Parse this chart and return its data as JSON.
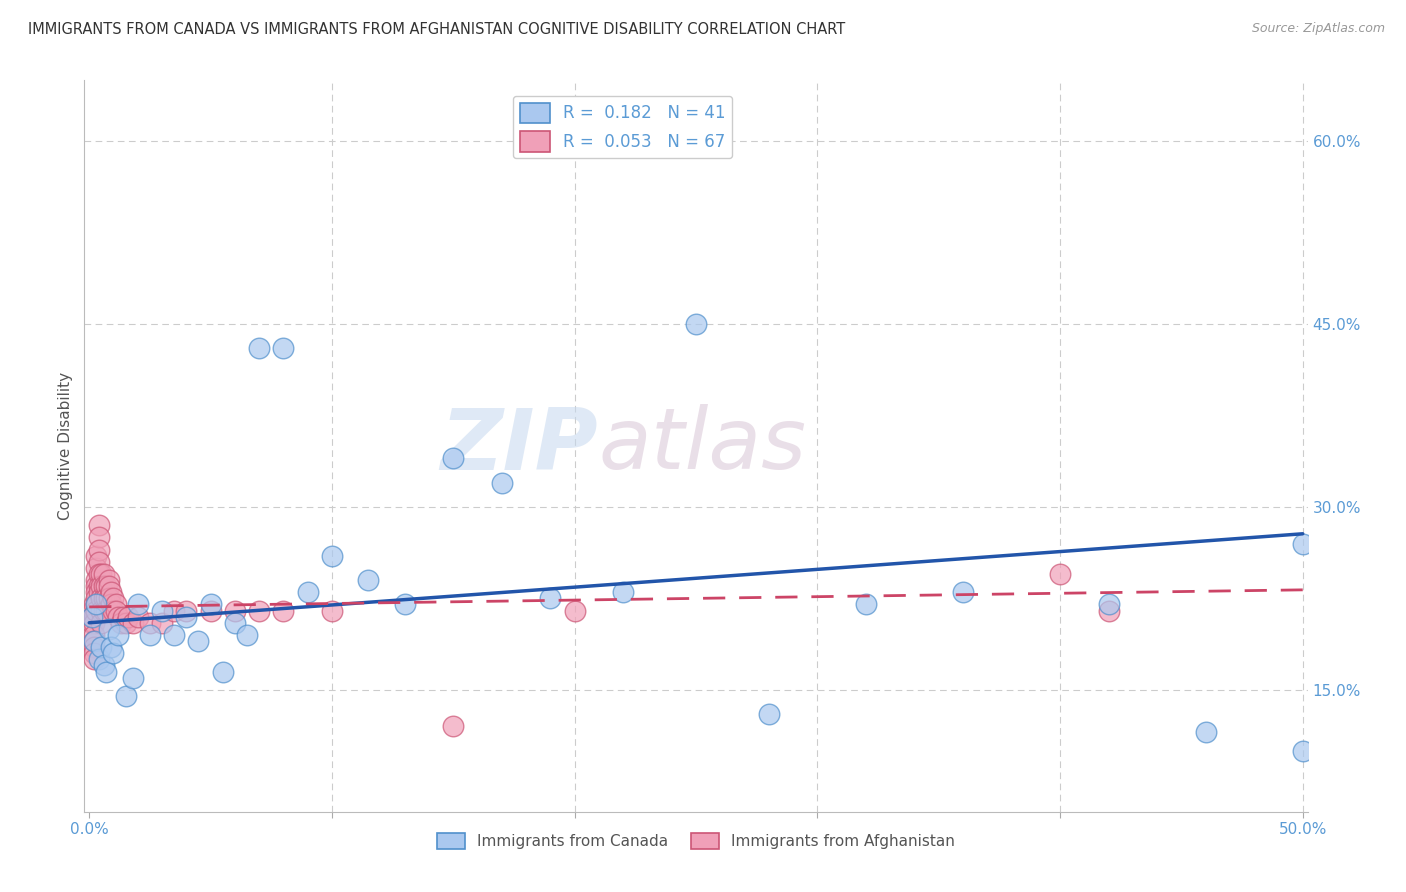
{
  "title": "IMMIGRANTS FROM CANADA VS IMMIGRANTS FROM AFGHANISTAN COGNITIVE DISABILITY CORRELATION CHART",
  "source": "Source: ZipAtlas.com",
  "ylabel": "Cognitive Disability",
  "xlim": [
    -0.002,
    0.502
  ],
  "ylim": [
    0.05,
    0.65
  ],
  "xtick_vals": [
    0.0,
    0.1,
    0.2,
    0.3,
    0.4,
    0.5
  ],
  "xtick_labels": [
    "0.0%",
    "",
    "",
    "",
    "",
    "50.0%"
  ],
  "ytick_vals": [
    0.15,
    0.3,
    0.45,
    0.6
  ],
  "ytick_labels": [
    "15.0%",
    "30.0%",
    "45.0%",
    "60.0%"
  ],
  "canada_color": "#aac8ef",
  "canada_edge": "#5090cc",
  "canada_line_color": "#2255aa",
  "canada_line_x": [
    0.0,
    0.5
  ],
  "canada_line_y": [
    0.205,
    0.278
  ],
  "afghanistan_color": "#f0a0b8",
  "afghanistan_edge": "#cc5575",
  "afghanistan_line_color": "#cc4466",
  "afghanistan_line_x": [
    0.0,
    0.5
  ],
  "afghanistan_line_y": [
    0.218,
    0.232
  ],
  "legend_R1": "R =  0.182   N = 41",
  "legend_R2": "R =  0.053   N = 67",
  "legend_label1": "Immigrants from Canada",
  "legend_label2": "Immigrants from Afghanistan",
  "background_color": "#ffffff",
  "grid_color": "#cccccc",
  "title_color": "#333333",
  "axis_color": "#5b9bd5",
  "axis_label_color": "#555555",
  "canada_x": [
    0.001,
    0.002,
    0.003,
    0.004,
    0.005,
    0.006,
    0.007,
    0.008,
    0.009,
    0.01,
    0.012,
    0.015,
    0.018,
    0.02,
    0.025,
    0.03,
    0.035,
    0.04,
    0.045,
    0.05,
    0.055,
    0.06,
    0.065,
    0.07,
    0.08,
    0.09,
    0.1,
    0.115,
    0.13,
    0.15,
    0.17,
    0.19,
    0.22,
    0.25,
    0.28,
    0.32,
    0.36,
    0.42,
    0.46,
    0.5,
    0.5
  ],
  "canada_y": [
    0.21,
    0.19,
    0.22,
    0.175,
    0.185,
    0.17,
    0.165,
    0.2,
    0.185,
    0.18,
    0.195,
    0.145,
    0.16,
    0.22,
    0.195,
    0.215,
    0.195,
    0.21,
    0.19,
    0.22,
    0.165,
    0.205,
    0.195,
    0.43,
    0.43,
    0.23,
    0.26,
    0.24,
    0.22,
    0.34,
    0.32,
    0.225,
    0.23,
    0.45,
    0.13,
    0.22,
    0.23,
    0.22,
    0.115,
    0.27,
    0.1
  ],
  "afghan_x": [
    0.001,
    0.001,
    0.001,
    0.002,
    0.002,
    0.002,
    0.002,
    0.002,
    0.002,
    0.002,
    0.002,
    0.003,
    0.003,
    0.003,
    0.003,
    0.003,
    0.003,
    0.003,
    0.003,
    0.004,
    0.004,
    0.004,
    0.004,
    0.004,
    0.004,
    0.004,
    0.005,
    0.005,
    0.005,
    0.005,
    0.005,
    0.006,
    0.006,
    0.006,
    0.006,
    0.007,
    0.007,
    0.007,
    0.008,
    0.008,
    0.008,
    0.009,
    0.009,
    0.01,
    0.01,
    0.011,
    0.011,
    0.012,
    0.013,
    0.014,
    0.015,
    0.016,
    0.018,
    0.02,
    0.025,
    0.03,
    0.035,
    0.04,
    0.05,
    0.06,
    0.07,
    0.08,
    0.1,
    0.15,
    0.2,
    0.4,
    0.42
  ],
  "afghan_y": [
    0.215,
    0.21,
    0.205,
    0.22,
    0.21,
    0.205,
    0.195,
    0.19,
    0.185,
    0.18,
    0.175,
    0.26,
    0.25,
    0.24,
    0.235,
    0.23,
    0.225,
    0.22,
    0.215,
    0.285,
    0.275,
    0.265,
    0.255,
    0.245,
    0.235,
    0.23,
    0.245,
    0.235,
    0.225,
    0.215,
    0.205,
    0.245,
    0.235,
    0.225,
    0.215,
    0.235,
    0.225,
    0.215,
    0.24,
    0.235,
    0.225,
    0.23,
    0.22,
    0.225,
    0.215,
    0.22,
    0.215,
    0.21,
    0.205,
    0.21,
    0.205,
    0.21,
    0.205,
    0.21,
    0.205,
    0.205,
    0.215,
    0.215,
    0.215,
    0.215,
    0.215,
    0.215,
    0.215,
    0.12,
    0.215,
    0.245,
    0.215
  ]
}
